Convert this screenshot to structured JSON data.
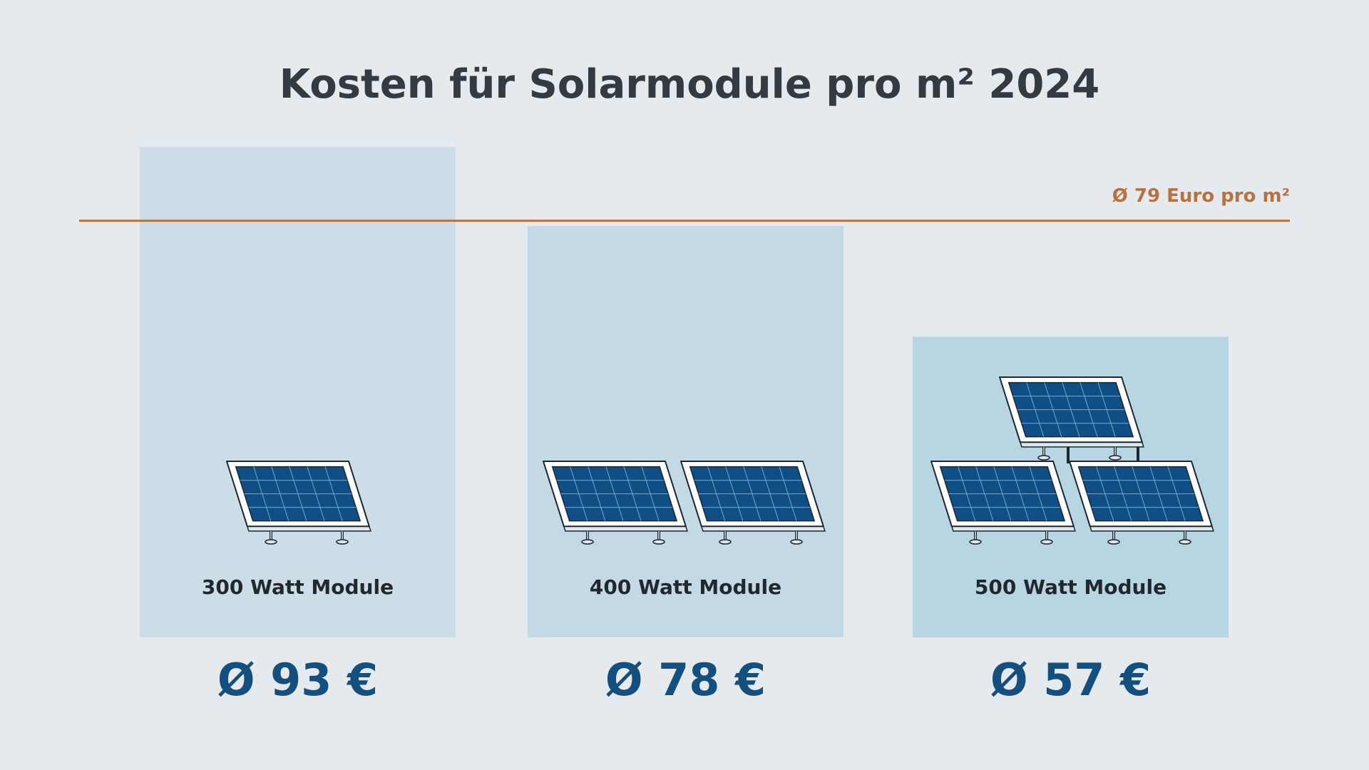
{
  "chart_data": {
    "type": "bar",
    "title": "Kosten für Solarmodule pro m² 2024",
    "categories": [
      "300 Watt Module",
      "400 Watt Module",
      "500 Watt Module"
    ],
    "values": [
      93,
      78,
      57
    ],
    "value_labels": [
      "Ø 93 €",
      "Ø 78 €",
      "Ø 57 €"
    ],
    "colors": [
      "#ccdde7",
      "#c3d9e5",
      "#b8d5e3"
    ],
    "value_label_color": "#14507f",
    "reference_line": {
      "value": 79,
      "label": "Ø 79 Euro pro m²",
      "color": "#b87240"
    }
  }
}
